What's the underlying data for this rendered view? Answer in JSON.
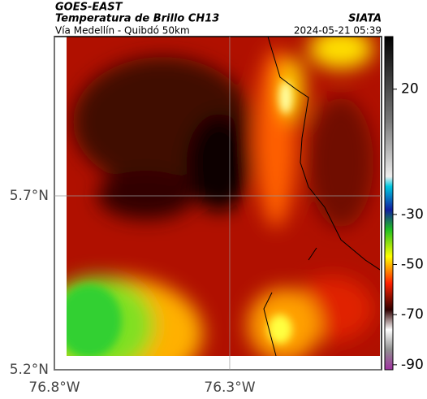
{
  "header": {
    "source": "GOES-EAST",
    "product": "Temperatura de Brillo CH13",
    "agency": "SIATA",
    "route": "Vía Medellín - Quibdó 50km",
    "timestamp": "2024-05-21 05:39"
  },
  "map": {
    "xlim": [
      -76.8,
      -75.867
    ],
    "ylim": [
      5.2,
      6.158
    ],
    "xticks": [
      {
        "value": -76.8,
        "label": "76.8°W"
      },
      {
        "value": -76.3,
        "label": "76.3°W"
      }
    ],
    "yticks": [
      {
        "value": 5.7,
        "label": "5.7°N"
      },
      {
        "value": 5.2,
        "label": "5.2°N"
      }
    ]
  },
  "colorbar": {
    "lim": [
      -92,
      41
    ],
    "ticks": [
      20,
      -30,
      -50,
      -70,
      -90
    ]
  }
}
